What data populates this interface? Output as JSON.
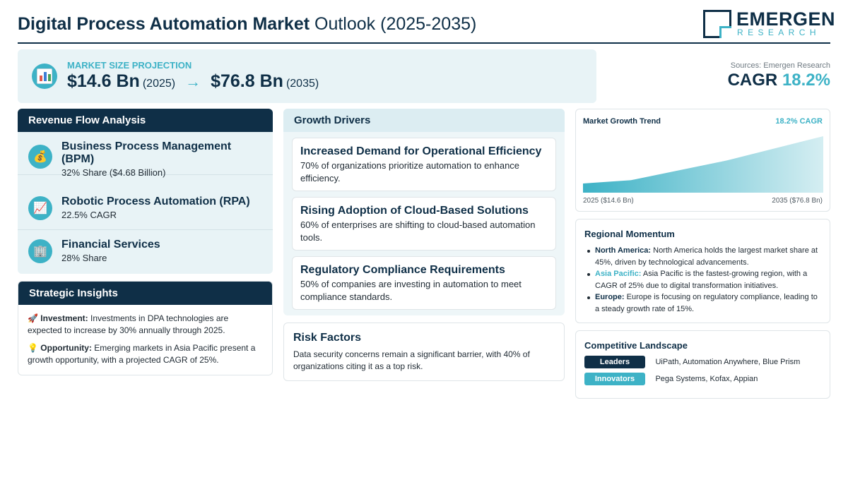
{
  "header": {
    "title_bold": "Digital Process Automation Market",
    "title_rest": "Outlook (2025-2035)",
    "logo_name": "EMERGEN",
    "logo_sub": "RESEARCH"
  },
  "banner": {
    "label": "MARKET SIZE PROJECTION",
    "start_value": "$14.6 Bn",
    "start_year": "(2025)",
    "arrow": "→",
    "end_value": "$76.8 Bn",
    "end_year": "(2035)",
    "icon": "bar-chart-icon"
  },
  "summary": {
    "sources": "Sources: Emergen Research",
    "cagr_label": "CAGR",
    "cagr_value": "18.2%"
  },
  "revenue": {
    "heading": "Revenue Flow Analysis",
    "items": [
      {
        "title": "Business Process Management (BPM)",
        "sub": "32% Share ($4.68 Billion)",
        "icon": "money-bag-icon",
        "glyph": "💰"
      },
      {
        "title": "Robotic Process Automation (RPA)",
        "sub": "22.5% CAGR",
        "icon": "trend-chart-icon",
        "glyph": "📈"
      },
      {
        "title": "Financial Services",
        "sub": "28% Share",
        "icon": "office-building-icon",
        "glyph": "🏢"
      }
    ]
  },
  "insights": {
    "heading": "Strategic Insights",
    "items": [
      {
        "glyph": "🚀",
        "icon": "rocket-icon",
        "label": "Investment:",
        "text": "Investments in DPA technologies are expected to increase by 30% annually through 2025."
      },
      {
        "glyph": "💡",
        "icon": "lightbulb-icon",
        "label": "Opportunity:",
        "text": "Emerging markets in Asia Pacific present a growth opportunity, with a projected CAGR of 25%."
      }
    ]
  },
  "drivers": {
    "heading": "Growth Drivers",
    "items": [
      {
        "title": "Increased Demand for Operational Efficiency",
        "text": "70% of organizations prioritize automation to enhance efficiency."
      },
      {
        "title": "Rising Adoption of Cloud-Based Solutions",
        "text": "60% of enterprises are shifting to cloud-based automation tools."
      },
      {
        "title": "Regulatory Compliance Requirements",
        "text": "50% of companies are investing in automation to meet compliance standards."
      }
    ]
  },
  "risk": {
    "heading": "Risk Factors",
    "text": "Data security concerns remain a significant barrier, with 40% of organizations citing it as a top risk."
  },
  "trend": {
    "heading": "Market Growth Trend",
    "cagr": "18.2% CAGR",
    "start_label": "2025 ($14.6 Bn)",
    "end_label": "2035 ($76.8 Bn)",
    "colors": {
      "fill_top": "#3db2c6",
      "fill_bottom": "#d5eef2"
    }
  },
  "chart_data": {
    "type": "area",
    "x": [
      2025,
      2027,
      2031,
      2035
    ],
    "y": [
      14.6,
      19,
      45,
      76.8
    ],
    "title": "Market Growth Trend",
    "annotations": [
      "18.2% CAGR"
    ],
    "x_labels": [
      "2025 ($14.6 Bn)",
      "2035 ($76.8 Bn)"
    ],
    "grid": false
  },
  "regional": {
    "heading": "Regional Momentum",
    "items": [
      {
        "region": "North America:",
        "text": "North America holds the largest market share at 45%, driven by technological advancements.",
        "accent": false
      },
      {
        "region": "Asia Pacific:",
        "text": "Asia Pacific is the fastest-growing region, with a CAGR of 25% due to digital transformation initiatives.",
        "accent": true
      },
      {
        "region": "Europe:",
        "text": "Europe is focusing on regulatory compliance, leading to a steady growth rate of 15%.",
        "accent": false
      }
    ]
  },
  "competitive": {
    "heading": "Competitive Landscape",
    "rows": [
      {
        "tag": "Leaders",
        "companies": "UiPath, Automation Anywhere, Blue Prism"
      },
      {
        "tag": "Innovators",
        "companies": "Pega Systems, Kofax, Appian"
      }
    ]
  },
  "colors": {
    "navy": "#0f2f47",
    "teal": "#3db2c6",
    "light_panel": "#e8f3f6"
  }
}
